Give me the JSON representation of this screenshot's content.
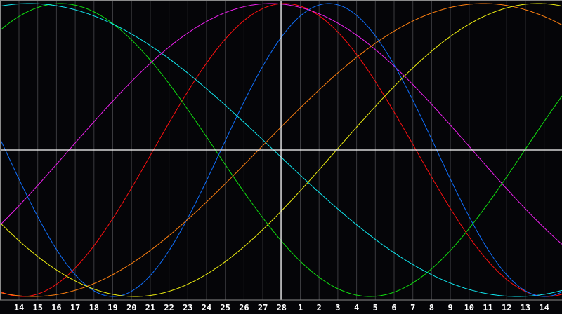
{
  "chart_data": {
    "type": "line",
    "title": "",
    "xlabel": "",
    "ylabel": "",
    "ylim": [
      -1,
      1
    ],
    "grid": true,
    "background": "#050508",
    "x_tick_labels": [
      "14",
      "15",
      "16",
      "17",
      "18",
      "19",
      "20",
      "21",
      "22",
      "23",
      "24",
      "25",
      "26",
      "27",
      "28",
      "1",
      "2",
      "3",
      "4",
      "5",
      "6",
      "7",
      "8",
      "9",
      "10",
      "11",
      "12",
      "13",
      "14"
    ],
    "center_day_label": "28",
    "series": [
      {
        "color": "#ff1010",
        "period_days": 28,
        "zero_up_day": -6.8
      },
      {
        "color": "#10e010",
        "period_days": 33,
        "zero_up_day": 13.0
      },
      {
        "color": "#10e8f0",
        "period_days": 52,
        "zero_up_day": -26.4
      },
      {
        "color": "#f020f0",
        "period_days": 43,
        "zero_up_day": -11.3
      },
      {
        "color": "#1070ff",
        "period_days": 23,
        "zero_up_day": -3.2
      },
      {
        "color": "#ff8010",
        "period_days": 48,
        "zero_up_day": -1.2
      },
      {
        "color": "#f0f010",
        "period_days": 43,
        "zero_up_day": 2.96
      }
    ]
  }
}
